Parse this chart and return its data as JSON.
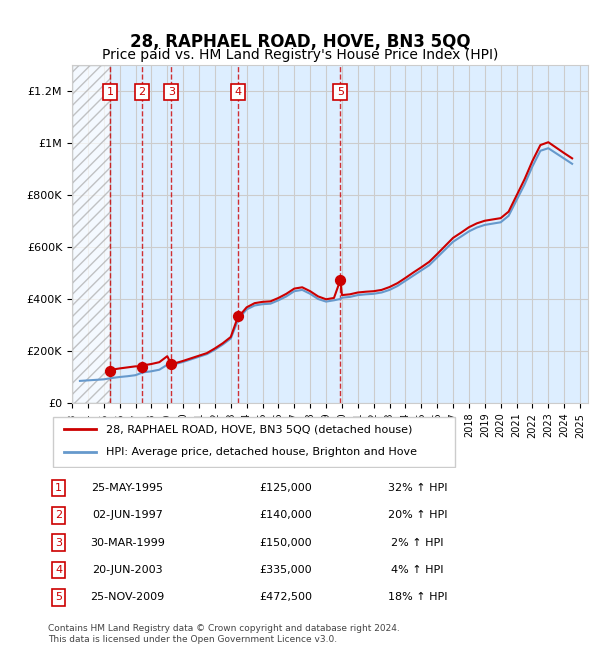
{
  "title": "28, RAPHAEL ROAD, HOVE, BN3 5QQ",
  "subtitle": "Price paid vs. HM Land Registry's House Price Index (HPI)",
  "title_fontsize": 12,
  "subtitle_fontsize": 10,
  "xlabel": "",
  "ylabel": "",
  "ylim": [
    0,
    1300000
  ],
  "yticks": [
    0,
    200000,
    400000,
    600000,
    800000,
    1000000,
    1200000
  ],
  "ytick_labels": [
    "£0",
    "£200K",
    "£400K",
    "£600K",
    "£800K",
    "£1M",
    "£1.2M"
  ],
  "xlim_start": 1993.0,
  "xlim_end": 2025.5,
  "background_color": "#ffffff",
  "plot_bg_color": "#ddeeff",
  "hatch_color": "#aaaaaa",
  "grid_color": "#cccccc",
  "sale_dates": [
    1995.39,
    1997.42,
    1999.25,
    2003.47,
    2009.9
  ],
  "sale_prices": [
    125000,
    140000,
    150000,
    335000,
    472500
  ],
  "sale_labels": [
    "1",
    "2",
    "3",
    "4",
    "5"
  ],
  "sale_dates_str": [
    "25-MAY-1995",
    "02-JUN-1997",
    "30-MAR-1999",
    "20-JUN-2003",
    "25-NOV-2009"
  ],
  "sale_prices_str": [
    "£125,000",
    "£140,000",
    "£150,000",
    "£335,000",
    "£472,500"
  ],
  "sale_hpi_pct": [
    "32% ↑ HPI",
    "20% ↑ HPI",
    "2% ↑ HPI",
    "4% ↑ HPI",
    "18% ↑ HPI"
  ],
  "red_line_color": "#cc0000",
  "blue_line_color": "#6699cc",
  "dot_color": "#cc0000",
  "legend_label_red": "28, RAPHAEL ROAD, HOVE, BN3 5QQ (detached house)",
  "legend_label_blue": "HPI: Average price, detached house, Brighton and Hove",
  "footnote": "Contains HM Land Registry data © Crown copyright and database right 2024.\nThis data is licensed under the Open Government Licence v3.0.",
  "hpi_years": [
    1993.5,
    1994.0,
    1994.5,
    1995.0,
    1995.39,
    1995.5,
    1996.0,
    1996.5,
    1997.0,
    1997.42,
    1997.5,
    1998.0,
    1998.5,
    1999.0,
    1999.25,
    1999.5,
    2000.0,
    2000.5,
    2001.0,
    2001.5,
    2002.0,
    2002.5,
    2003.0,
    2003.47,
    2003.5,
    2004.0,
    2004.5,
    2005.0,
    2005.5,
    2006.0,
    2006.5,
    2007.0,
    2007.5,
    2008.0,
    2008.5,
    2009.0,
    2009.5,
    2009.9,
    2010.0,
    2010.5,
    2011.0,
    2011.5,
    2012.0,
    2012.5,
    2013.0,
    2013.5,
    2014.0,
    2014.5,
    2015.0,
    2015.5,
    2016.0,
    2016.5,
    2017.0,
    2017.5,
    2018.0,
    2018.5,
    2019.0,
    2019.5,
    2020.0,
    2020.5,
    2021.0,
    2021.5,
    2022.0,
    2022.5,
    2023.0,
    2023.5,
    2024.0,
    2024.5
  ],
  "hpi_values": [
    85000,
    87000,
    89000,
    91000,
    94788,
    96000,
    100000,
    103000,
    107000,
    116667,
    118000,
    122000,
    128000,
    147000,
    147059,
    150000,
    158000,
    168000,
    178000,
    188000,
    205000,
    225000,
    248000,
    321154,
    325000,
    360000,
    375000,
    380000,
    382000,
    395000,
    410000,
    430000,
    435000,
    420000,
    400000,
    390000,
    395000,
    400000,
    405000,
    408000,
    415000,
    418000,
    420000,
    425000,
    435000,
    450000,
    470000,
    490000,
    510000,
    530000,
    560000,
    590000,
    620000,
    640000,
    660000,
    675000,
    685000,
    690000,
    695000,
    720000,
    780000,
    840000,
    910000,
    970000,
    980000,
    960000,
    940000,
    920000
  ],
  "red_years": [
    1995.39,
    1995.5,
    1996.0,
    1996.5,
    1997.0,
    1997.42,
    1997.5,
    1998.0,
    1998.5,
    1999.0,
    1999.25,
    1999.5,
    2000.0,
    2000.5,
    2001.0,
    2001.5,
    2002.0,
    2002.5,
    2003.0,
    2003.47,
    2003.5,
    2004.0,
    2004.5,
    2005.0,
    2005.5,
    2006.0,
    2006.5,
    2007.0,
    2007.5,
    2008.0,
    2008.5,
    2009.0,
    2009.5,
    2009.9,
    2010.0,
    2010.5,
    2011.0,
    2011.5,
    2012.0,
    2012.5,
    2013.0,
    2013.5,
    2014.0,
    2014.5,
    2015.0,
    2015.5,
    2016.0,
    2016.5,
    2017.0,
    2017.5,
    2018.0,
    2018.5,
    2019.0,
    2019.5,
    2020.0,
    2020.5,
    2021.0,
    2021.5,
    2022.0,
    2022.5,
    2023.0,
    2023.5,
    2024.0,
    2024.5
  ],
  "red_values": [
    125000,
    128000,
    133000,
    137000,
    141000,
    140000,
    145000,
    150000,
    157000,
    180000,
    150000,
    153000,
    162000,
    172000,
    182000,
    192000,
    210000,
    230000,
    254000,
    335000,
    332000,
    368000,
    384000,
    389000,
    391000,
    404000,
    420000,
    440000,
    445000,
    430000,
    410000,
    399000,
    404000,
    472500,
    415000,
    418000,
    425000,
    428000,
    430000,
    435000,
    446000,
    461000,
    481000,
    502000,
    522000,
    543000,
    573000,
    604000,
    635000,
    655000,
    676000,
    691000,
    701000,
    706000,
    711000,
    736000,
    798000,
    860000,
    931000,
    992000,
    1003000,
    982000,
    961000,
    941000
  ]
}
